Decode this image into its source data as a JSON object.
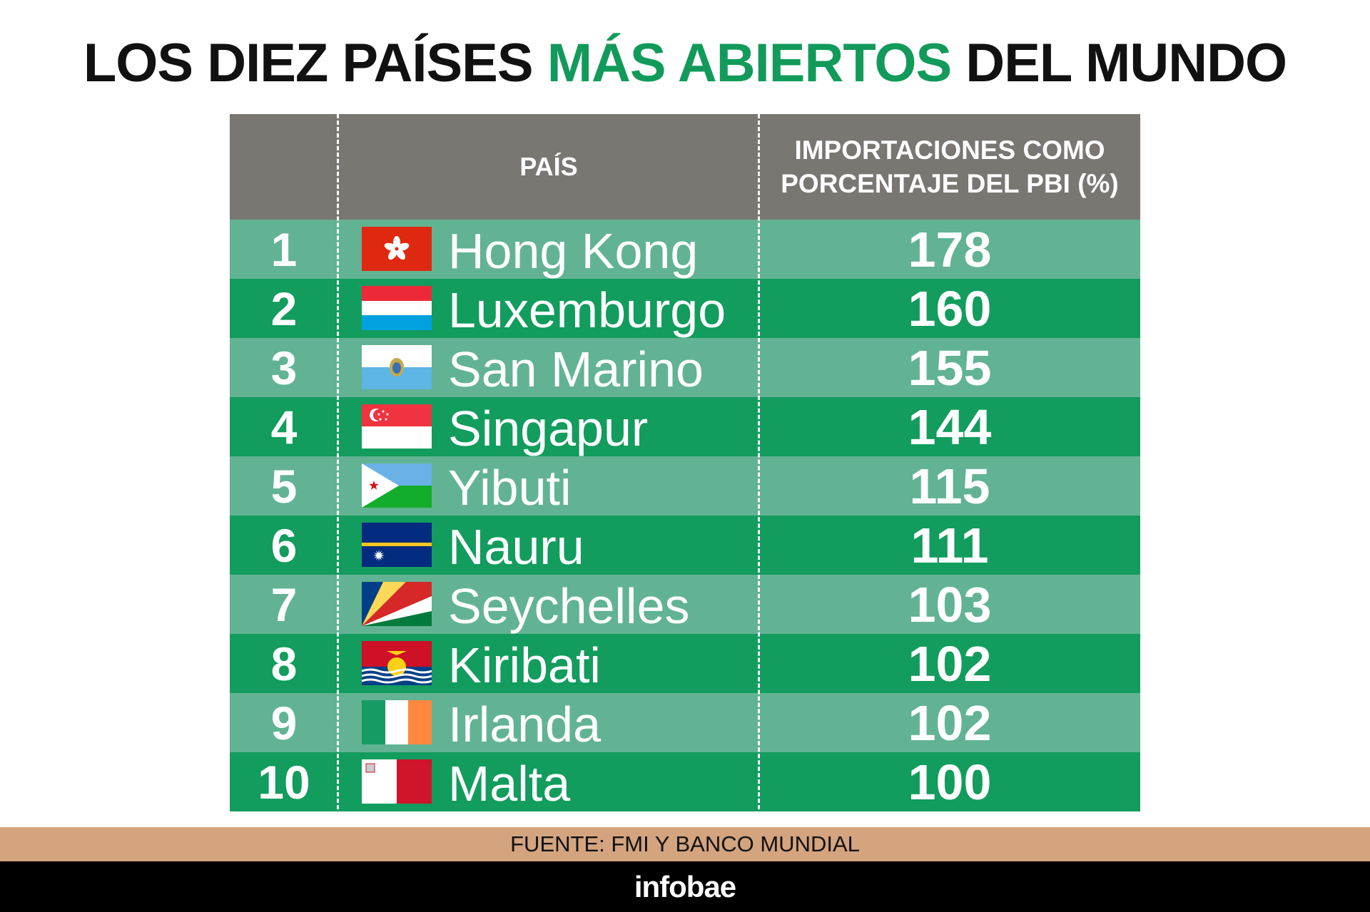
{
  "title": {
    "part1": "LOS DIEZ PAÍSES ",
    "highlight": "MÁS ABIERTOS",
    "part2": " DEL MUNDO"
  },
  "colors": {
    "accent": "#129a5b",
    "header_bg": "#7a7672",
    "row_light": "#62b393",
    "row_dark": "#129c5d",
    "source_bg": "#d4a47f"
  },
  "table": {
    "header_country": "PAÍS",
    "header_value_line1": "IMPORTACIONES COMO",
    "header_value_line2": "PORCENTAJE DEL PBI (%)"
  },
  "chart_data": {
    "type": "table",
    "columns": [
      "",
      "PAÍS",
      "IMPORTACIONES COMO PORCENTAJE DEL PBI (%)"
    ],
    "rows": [
      {
        "rank": "1",
        "country": "Hong Kong",
        "value": "178",
        "flag": "hong-kong-flag"
      },
      {
        "rank": "2",
        "country": "Luxemburgo",
        "value": "160",
        "flag": "luxembourg-flag"
      },
      {
        "rank": "3",
        "country": "San Marino",
        "value": "155",
        "flag": "san-marino-flag"
      },
      {
        "rank": "4",
        "country": "Singapur",
        "value": "144",
        "flag": "singapore-flag"
      },
      {
        "rank": "5",
        "country": "Yibuti",
        "value": "115",
        "flag": "djibouti-flag"
      },
      {
        "rank": "6",
        "country": "Nauru",
        "value": "111",
        "flag": "nauru-flag"
      },
      {
        "rank": "7",
        "country": "Seychelles",
        "value": "103",
        "flag": "seychelles-flag"
      },
      {
        "rank": "8",
        "country": "Kiribati",
        "value": "102",
        "flag": "kiribati-flag"
      },
      {
        "rank": "9",
        "country": "Irlanda",
        "value": "102",
        "flag": "ireland-flag"
      },
      {
        "rank": "10",
        "country": "Malta",
        "value": "100",
        "flag": "malta-flag"
      }
    ]
  },
  "source": "FUENTE:  FMI Y BANCO MUNDIAL",
  "brand": "infobae"
}
